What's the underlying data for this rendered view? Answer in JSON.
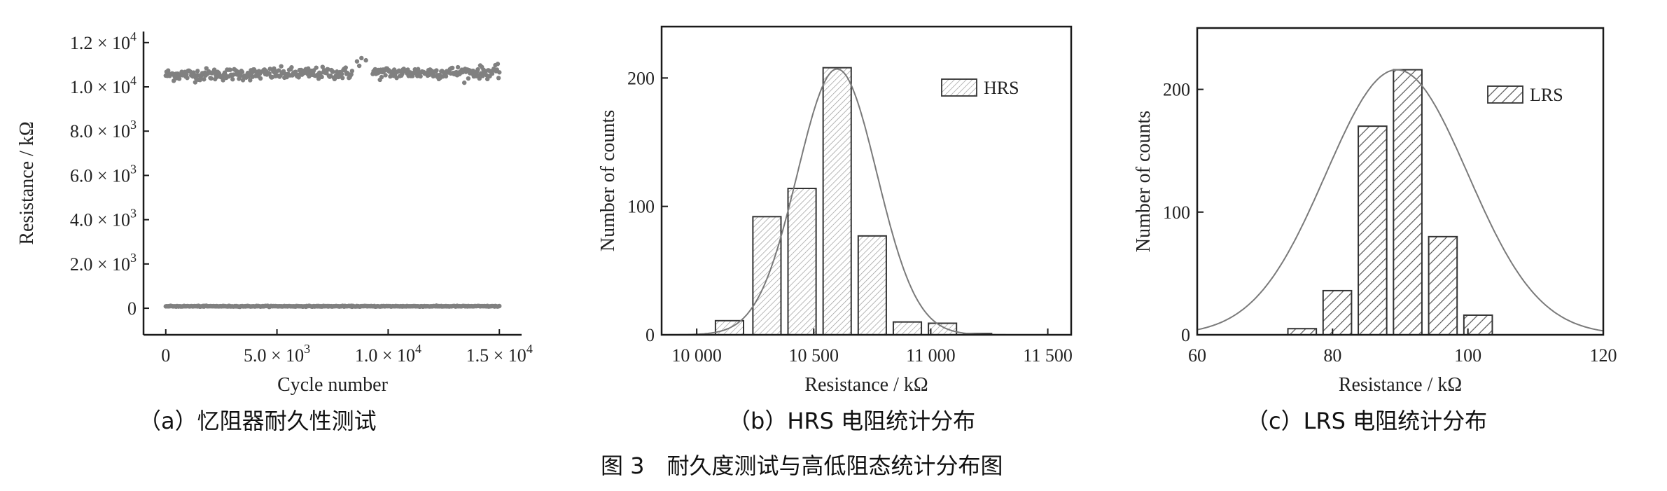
{
  "figure_caption": "图 3　耐久度测试与高低阻态统计分布图",
  "panels": [
    {
      "caption": "（a）忆阻器耐久性测试"
    },
    {
      "caption": "（b）HRS 电阻统计分布"
    },
    {
      "caption": "（c）LRS 电阻统计分布"
    }
  ],
  "marker_color": "#808080",
  "bar_hatch_color": "#808080",
  "chart_data": [
    {
      "type": "scatter",
      "xlabel": "Cycle number",
      "ylabel": "Resistance / kΩ",
      "xlim": [
        -1000,
        16000
      ],
      "ylim": [
        -1200,
        12500
      ],
      "x_ticks": [
        {
          "value": 0,
          "label": "0"
        },
        {
          "value": 5000,
          "label": "5.0 × 10",
          "exp": "3"
        },
        {
          "value": 10000,
          "label": "1.0 × 10",
          "exp": "4"
        },
        {
          "value": 15000,
          "label": "1.5 × 10",
          "exp": "4"
        }
      ],
      "y_ticks": [
        {
          "value": 0,
          "label": "0"
        },
        {
          "value": 2000,
          "label": "2.0 × 10",
          "exp": "3"
        },
        {
          "value": 4000,
          "label": "4.0 × 10",
          "exp": "3"
        },
        {
          "value": 6000,
          "label": "6.0 × 10",
          "exp": "3"
        },
        {
          "value": 8000,
          "label": "8.0 × 10",
          "exp": "3"
        },
        {
          "value": 10000,
          "label": "1.0 × 10",
          "exp": "4"
        },
        {
          "value": 12000,
          "label": "1.2 × 10",
          "exp": "4"
        }
      ],
      "series": [
        {
          "values_description": "HRS",
          "x_range": [
            0,
            15000
          ],
          "mean": 10550,
          "spread": 150,
          "points": 420
        },
        {
          "values_description": "LRS",
          "x_range": [
            0,
            15000
          ],
          "mean": 90,
          "spread": 10,
          "points": 420
        }
      ],
      "outliers": [
        {
          "x": 8600,
          "y": 11150
        },
        {
          "x": 8800,
          "y": 11300
        },
        {
          "x": 9000,
          "y": 11200
        },
        {
          "x": 8700,
          "y": 10950
        }
      ]
    },
    {
      "type": "bar",
      "xlabel": "Resistance / kΩ",
      "ylabel": "Number of counts",
      "xlim": [
        9850,
        11600
      ],
      "ylim": [
        0,
        240
      ],
      "x_ticks": [
        {
          "value": 10000,
          "label": "10 000"
        },
        {
          "value": 10500,
          "label": "10 500"
        },
        {
          "value": 11000,
          "label": "11 000"
        },
        {
          "value": 11500,
          "label": "11 500"
        }
      ],
      "y_ticks": [
        {
          "value": 0,
          "label": "0"
        },
        {
          "value": 100,
          "label": "100"
        },
        {
          "value": 200,
          "label": "200"
        }
      ],
      "bin_width": 120,
      "bins": [
        {
          "center": 10140,
          "count": 11
        },
        {
          "center": 10300,
          "count": 92
        },
        {
          "center": 10450,
          "count": 114
        },
        {
          "center": 10600,
          "count": 208
        },
        {
          "center": 10750,
          "count": 77
        },
        {
          "center": 10900,
          "count": 10
        },
        {
          "center": 11050,
          "count": 9
        },
        {
          "center": 11200,
          "count": 1
        }
      ],
      "fit": {
        "type": "gaussian",
        "mean": 10600,
        "sigma": 170,
        "peak": 207
      },
      "legend": [
        {
          "name": "HRS"
        }
      ],
      "legend_position": "top-right"
    },
    {
      "type": "bar",
      "xlabel": "Resistance / kΩ",
      "ylabel": "Number of counts",
      "xlim": [
        60,
        120
      ],
      "ylim": [
        0,
        250
      ],
      "x_ticks": [
        {
          "value": 60,
          "label": "60"
        },
        {
          "value": 80,
          "label": "80"
        },
        {
          "value": 100,
          "label": "100"
        },
        {
          "value": 120,
          "label": "120"
        }
      ],
      "y_ticks": [
        {
          "value": 0,
          "label": "0"
        },
        {
          "value": 100,
          "label": "100"
        },
        {
          "value": 200,
          "label": "200"
        }
      ],
      "bin_width": 4.2,
      "bins": [
        {
          "center": 75.5,
          "count": 5
        },
        {
          "center": 80.7,
          "count": 36
        },
        {
          "center": 85.9,
          "count": 170
        },
        {
          "center": 91.1,
          "count": 216
        },
        {
          "center": 96.3,
          "count": 80
        },
        {
          "center": 101.5,
          "count": 16
        }
      ],
      "fit": {
        "type": "gaussian",
        "mean": 89.5,
        "sigma": 10.5,
        "peak": 216
      },
      "legend": [
        {
          "name": "LRS"
        }
      ],
      "legend_position": "top-right"
    }
  ]
}
